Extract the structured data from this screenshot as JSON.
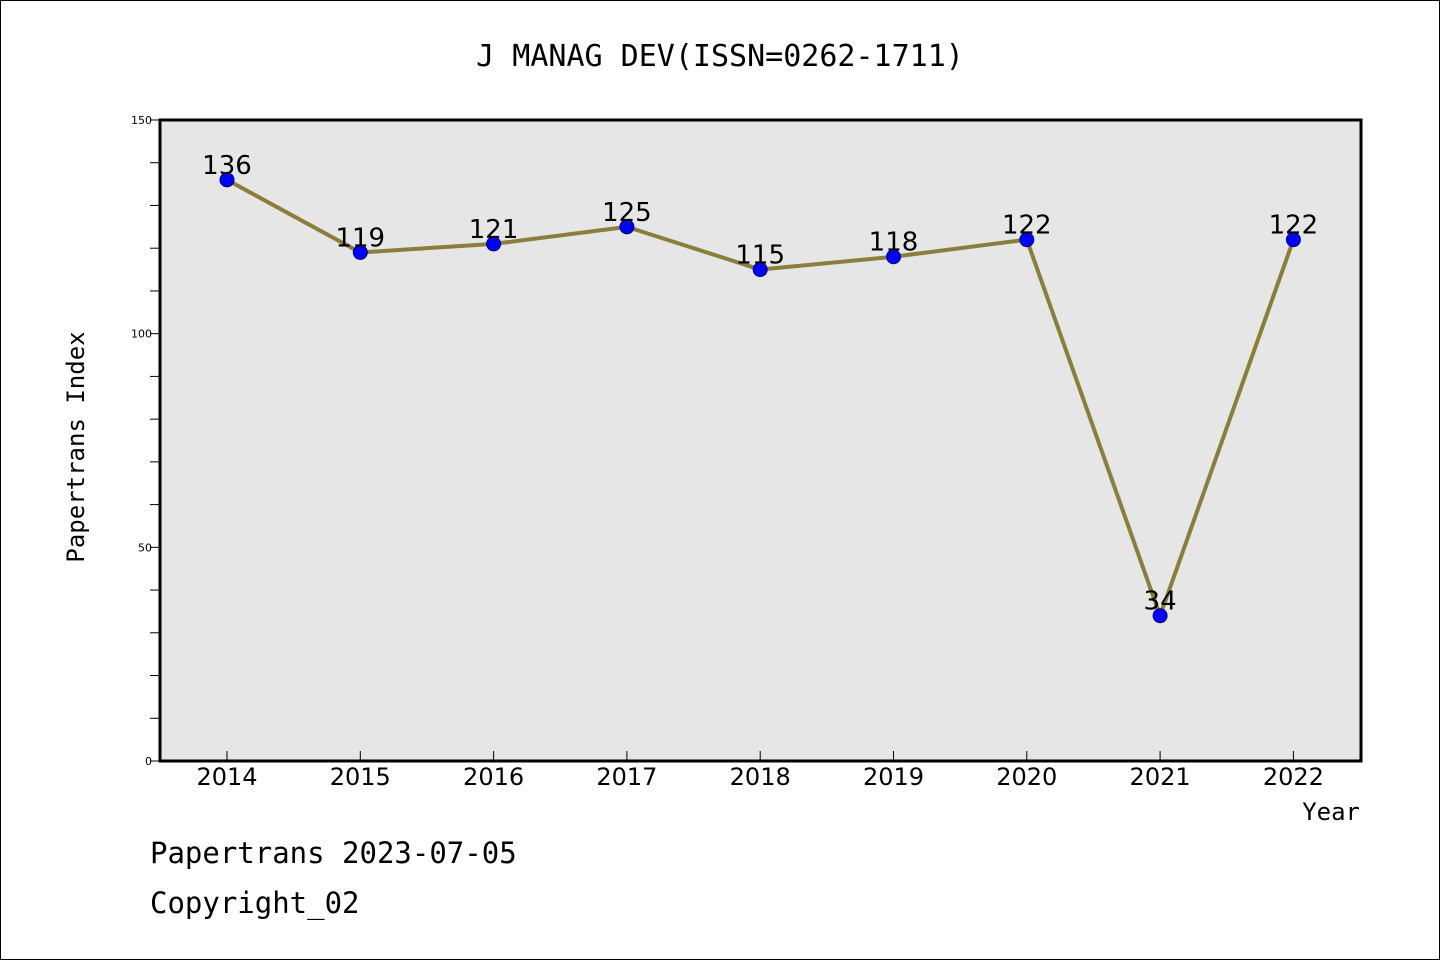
{
  "chart_data": {
    "type": "line",
    "title": "J MANAG DEV(ISSN=0262-1711)",
    "xlabel": "Year",
    "ylabel": "Papertrans Index",
    "categories": [
      "2014",
      "2015",
      "2016",
      "2017",
      "2018",
      "2019",
      "2020",
      "2021",
      "2022"
    ],
    "values": [
      136,
      119,
      121,
      125,
      115,
      118,
      122,
      34,
      122
    ],
    "ylim": [
      0,
      150
    ],
    "yticks": [
      0,
      50,
      100,
      150
    ],
    "grid": false,
    "line_color": "#8b7d3a",
    "marker_color": "#0000ff",
    "plot_background": "#e6e6e6"
  },
  "footer": {
    "line1": "Papertrans 2023-07-05",
    "line2": "Copyright_02"
  }
}
